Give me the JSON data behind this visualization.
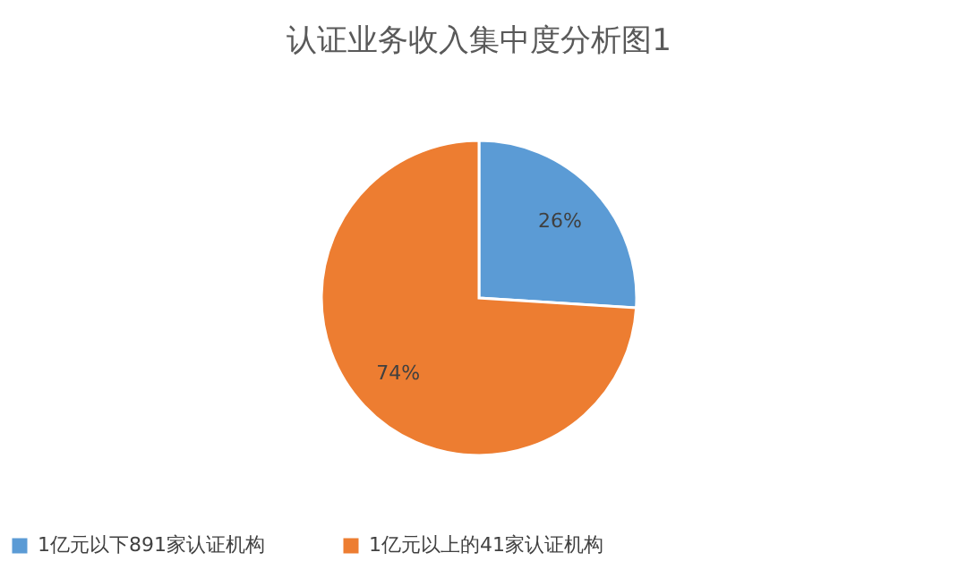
{
  "chart_data": {
    "type": "pie",
    "title": "认证业务收入集中度分析图1",
    "categories": [
      "1亿元以下891家认证机构",
      "1亿元以上的41家认证机构"
    ],
    "values": [
      26,
      74
    ],
    "colors": [
      "#5b9bd5",
      "#ed7d31"
    ],
    "value_labels": [
      "26%",
      "74%"
    ],
    "legend": "bottom"
  }
}
